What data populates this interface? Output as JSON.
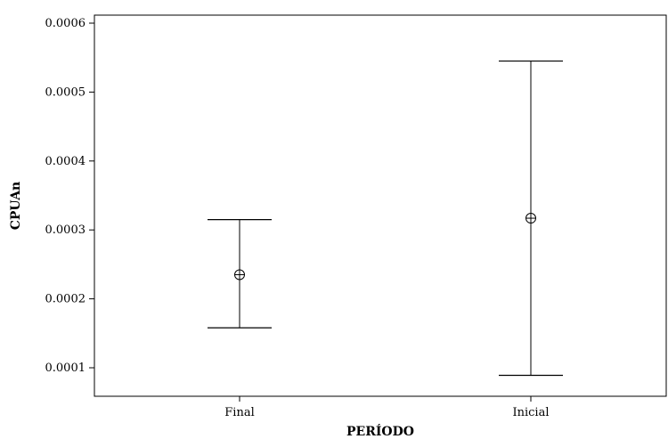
{
  "chart_data": {
    "type": "interval",
    "title": "",
    "xlabel": "PERÍODO",
    "ylabel": "CPUAn",
    "categories": [
      "Final",
      "Inicial"
    ],
    "points": [
      {
        "category": "Final",
        "mean": 0.000235,
        "lower": 0.000158,
        "upper": 0.000315
      },
      {
        "category": "Inicial",
        "mean": 0.000317,
        "lower": 8.9e-05,
        "upper": 0.000545
      }
    ],
    "ylim": [
      4e-05,
      0.0006
    ],
    "yticks": [
      {
        "value": 0.0001,
        "label": "0.0001"
      },
      {
        "value": 0.0002,
        "label": "0.0002"
      },
      {
        "value": 0.0003,
        "label": "0.0003"
      },
      {
        "value": 0.0004,
        "label": "0.0004"
      },
      {
        "value": 0.0005,
        "label": "0.0005"
      },
      {
        "value": 0.0006,
        "label": "0.0006"
      }
    ],
    "grid": false,
    "legend": "none"
  }
}
